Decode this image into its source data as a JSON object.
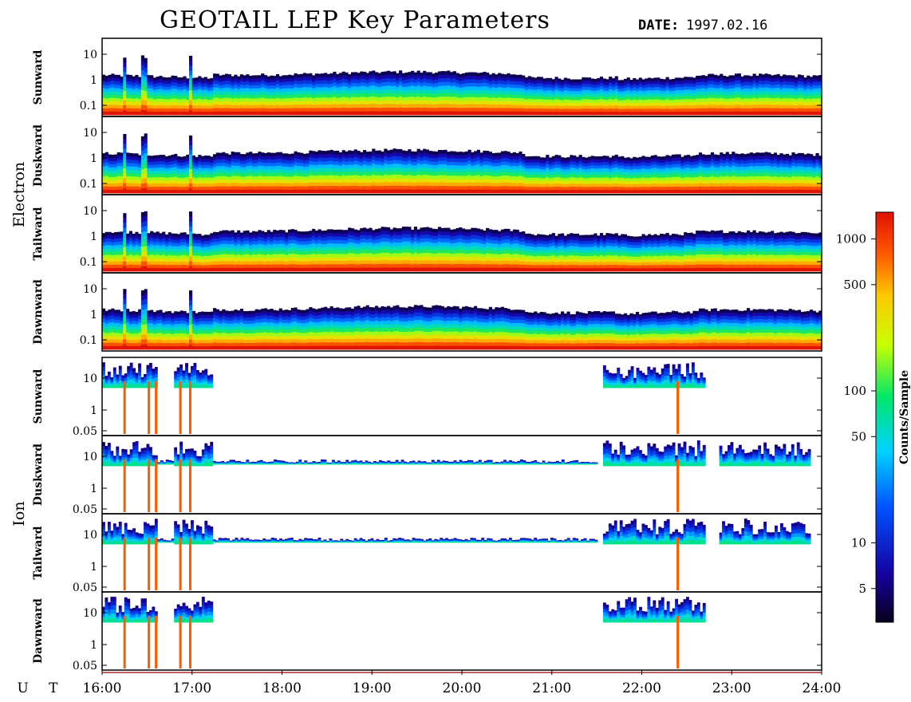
{
  "title": "GEOTAIL LEP Key Parameters",
  "date_label": "DATE:",
  "date_value": "1997.02.16",
  "chart_data": {
    "type": "heatmap",
    "x_axis": {
      "label": "U T",
      "ticks": [
        "16:00",
        "17:00",
        "18:00",
        "19:00",
        "20:00",
        "21:00",
        "22:00",
        "23:00",
        "24:00"
      ],
      "range_hours": [
        16,
        24
      ]
    },
    "colorbar": {
      "label": "Counts/Sample",
      "ticks": [
        "1000",
        "500",
        "100",
        "50",
        "10",
        "5"
      ],
      "scale": "log",
      "range": [
        3,
        1500
      ]
    },
    "groups": [
      {
        "name": "Electron",
        "y_ticks": [
          "10",
          "1",
          "0.1"
        ],
        "panels": [
          {
            "name": "Sunward"
          },
          {
            "name": "Duskward"
          },
          {
            "name": "Tailward"
          },
          {
            "name": "Dawnward"
          }
        ]
      },
      {
        "name": "Ion",
        "y_ticks": [
          "10",
          "1",
          "0.05"
        ],
        "panels": [
          {
            "name": "Sunward"
          },
          {
            "name": "Duskward"
          },
          {
            "name": "Tailward"
          },
          {
            "name": "Dawnward"
          }
        ]
      }
    ]
  }
}
